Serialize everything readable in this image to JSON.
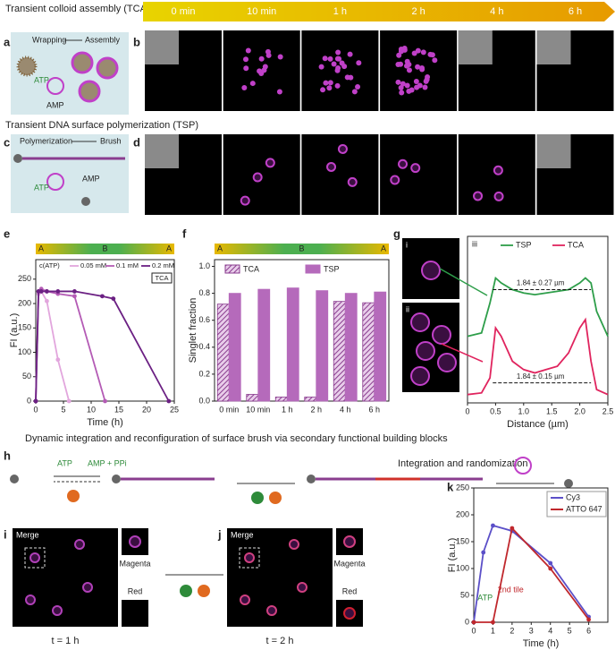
{
  "header": {
    "tca_title": "Transient colloid assembly (TCA) by multivalent interaction",
    "tsp_title": "Transient DNA surface polymerization (TSP)",
    "h_title": "Dynamic integration and reconfiguration of surface brush via secondary functional building blocks"
  },
  "timeline": [
    "0 min",
    "10 min",
    "1 h",
    "2 h",
    "4 h",
    "6 h"
  ],
  "panel_letters": [
    "a",
    "b",
    "c",
    "d",
    "e",
    "f",
    "g",
    "h",
    "i",
    "j",
    "k"
  ],
  "schematic_a": {
    "left": "Wrapping",
    "right": "Assembly",
    "atp": "ATP",
    "amp": "AMP"
  },
  "schematic_c": {
    "left": "Polymerization",
    "right": "Brush",
    "atp": "ATP",
    "amp": "AMP"
  },
  "schematic_h": {
    "atp": "ATP",
    "amp": "AMP + PPi",
    "step": "Integration and randomization"
  },
  "image_g": {
    "i": "i",
    "ii": "ii",
    "iii": "iii"
  },
  "image_i": {
    "merge": "Merge",
    "magenta": "Magenta",
    "red": "Red",
    "time": "t = 1 h"
  },
  "image_j": {
    "merge": "Merge",
    "magenta": "Magenta",
    "red": "Red",
    "time": "t = 2 h"
  },
  "chart_data": [
    {
      "type": "line",
      "x_label": "Time (h)",
      "y_label": "FI (a.u.)",
      "legend_title": "c(ATP)",
      "tag": "TCA",
      "phases": [
        "A",
        "B",
        "A"
      ],
      "xlim": [
        0,
        25
      ],
      "xticks": [
        0,
        5,
        10,
        15,
        20,
        25
      ],
      "ylim": [
        0,
        290
      ],
      "yticks": [
        0,
        50,
        100,
        150,
        200,
        250
      ],
      "series": [
        {
          "name": "0.05 mM",
          "color": "#e2a6dd",
          "x": [
            0,
            0.5,
            1,
            2,
            4,
            6
          ],
          "values": [
            0,
            220,
            225,
            205,
            85,
            0
          ]
        },
        {
          "name": "0.1 mM",
          "color": "#b45bb5",
          "x": [
            0,
            0.5,
            1,
            2,
            4,
            7,
            12.5
          ],
          "values": [
            0,
            225,
            230,
            225,
            220,
            215,
            0
          ]
        },
        {
          "name": "0.2 mM",
          "color": "#6b2083",
          "x": [
            0,
            0.5,
            1,
            2,
            4,
            7,
            12,
            14,
            24
          ],
          "values": [
            0,
            225,
            225,
            225,
            225,
            225,
            215,
            210,
            0
          ]
        }
      ]
    },
    {
      "type": "bar",
      "y_label": "Singlet fraction",
      "phases": [
        "A",
        "B",
        "A"
      ],
      "categories": [
        "0 min",
        "10 min",
        "1 h",
        "2 h",
        "4 h",
        "6 h"
      ],
      "ylim": [
        0,
        1.05
      ],
      "yticks": [
        {
          "value": 0,
          "label": "0.0"
        },
        0.2,
        0.4,
        0.6,
        0.8,
        {
          "value": 1,
          "label": "1.0"
        }
      ],
      "series": [
        {
          "name": "TCA",
          "color": "#8a3d8f",
          "hatch": true,
          "values": [
            0.72,
            0.05,
            0.03,
            0.03,
            0.74,
            0.73
          ]
        },
        {
          "name": "TSP",
          "color": "#b56abb",
          "hatch": false,
          "values": [
            0.8,
            0.83,
            0.84,
            0.82,
            0.8,
            0.81
          ]
        }
      ]
    },
    {
      "type": "line",
      "x_label": "Distance (µm)",
      "annotations": [
        "1.84 ± 0.27 µm",
        "1.84 ± 0.15 µm"
      ],
      "xlim": [
        0,
        2.5
      ],
      "xticks": [
        0,
        0.5,
        {
          "value": 1,
          "label": "1.0"
        },
        1.5,
        {
          "value": 2,
          "label": "2.0"
        },
        2.5
      ],
      "ylim": [
        0,
        1
      ],
      "series": [
        {
          "name": "TSP",
          "color": "#2e9e4a",
          "x": [
            0,
            0.25,
            0.4,
            0.5,
            0.6,
            0.8,
            1.0,
            1.2,
            1.4,
            1.6,
            1.8,
            2.0,
            2.1,
            2.2,
            2.3,
            2.5
          ],
          "values": [
            0.4,
            0.42,
            0.6,
            0.75,
            0.72,
            0.68,
            0.66,
            0.65,
            0.66,
            0.67,
            0.68,
            0.72,
            0.75,
            0.72,
            0.55,
            0.4
          ]
        },
        {
          "name": "TCA",
          "color": "#e0245e",
          "x": [
            0,
            0.25,
            0.4,
            0.5,
            0.6,
            0.8,
            1.0,
            1.2,
            1.4,
            1.6,
            1.8,
            2.0,
            2.1,
            2.2,
            2.3,
            2.5
          ],
          "values": [
            0.05,
            0.06,
            0.15,
            0.45,
            0.4,
            0.25,
            0.2,
            0.18,
            0.2,
            0.22,
            0.3,
            0.45,
            0.5,
            0.25,
            0.08,
            0.05
          ]
        }
      ]
    },
    {
      "type": "line",
      "x_label": "Time (h)",
      "y_label": "FI (a.u.)",
      "annotations": [
        "ATP",
        "2nd tile"
      ],
      "xlim": [
        0,
        7
      ],
      "xticks": [
        0,
        1,
        2,
        3,
        4,
        5,
        6
      ],
      "ylim": [
        0,
        250
      ],
      "yticks": [
        0,
        50,
        100,
        150,
        200,
        250
      ],
      "series": [
        {
          "name": "Cy3",
          "color": "#5b4fc8",
          "x": [
            0,
            0.5,
            1,
            2,
            4,
            6
          ],
          "values": [
            0,
            130,
            180,
            170,
            110,
            10
          ]
        },
        {
          "name": "ATTO 647",
          "color": "#c0282d",
          "x": [
            0,
            1,
            2,
            4,
            6
          ],
          "values": [
            0,
            0,
            175,
            100,
            5
          ]
        }
      ]
    }
  ]
}
